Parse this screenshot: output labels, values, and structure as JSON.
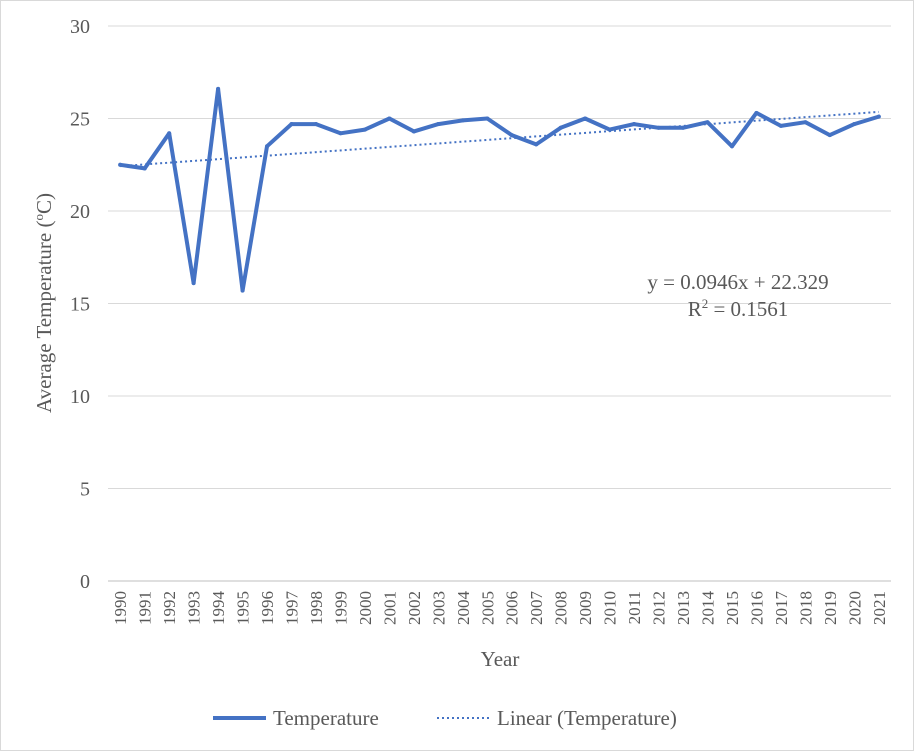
{
  "chart_data": {
    "type": "line",
    "xlabel": "Year",
    "ylabel": "Average Temperature (",
    "ylabel_sup": "o",
    "ylabel_end": "C)",
    "ylim": [
      0,
      30
    ],
    "yticks": [
      0,
      5,
      10,
      15,
      20,
      25,
      30
    ],
    "grid": true,
    "legend_position": "bottom",
    "categories": [
      "1990",
      "1991",
      "1992",
      "1993",
      "1994",
      "1995",
      "1996",
      "1997",
      "1998",
      "1999",
      "2000",
      "2001",
      "2002",
      "2003",
      "2004",
      "2005",
      "2006",
      "2007",
      "2008",
      "2009",
      "2010",
      "2011",
      "2012",
      "2013",
      "2014",
      "2015",
      "2016",
      "2017",
      "2018",
      "2019",
      "2020",
      "2021"
    ],
    "series": [
      {
        "name": "Temperature",
        "color": "#4472C4",
        "style": "solid",
        "values": [
          22.5,
          22.3,
          24.2,
          16.1,
          26.6,
          15.7,
          23.5,
          24.7,
          24.7,
          24.2,
          24.4,
          25.0,
          24.3,
          24.7,
          24.9,
          25.0,
          24.1,
          23.6,
          24.5,
          25.0,
          24.4,
          24.7,
          24.5,
          24.5,
          24.8,
          23.5,
          25.3,
          24.6,
          24.8,
          24.1,
          24.7,
          25.1
        ]
      },
      {
        "name": "Linear (Temperature)",
        "color": "#4472C4",
        "style": "dotted",
        "trendline": {
          "slope": 0.0946,
          "intercept": 22.329
        }
      }
    ],
    "annotations": {
      "equation": "y = 0.0946x + 22.329",
      "r_squared_prefix": "R",
      "r_squared_sup": "2",
      "r_squared_rest": " = 0.1561"
    }
  }
}
